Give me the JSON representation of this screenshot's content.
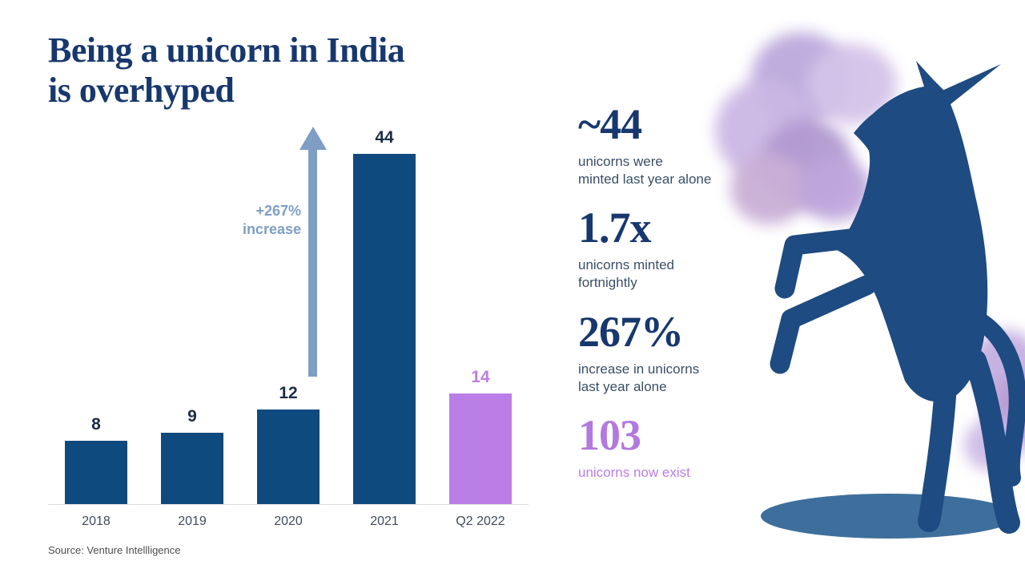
{
  "title": {
    "line1": "Being a unicorn in India",
    "line2": "is overhyped"
  },
  "chart_data": {
    "type": "bar",
    "title": "Being a unicorn in India is overhyped",
    "categories": [
      "2018",
      "2019",
      "2020",
      "2021",
      "Q2 2022"
    ],
    "values": [
      8,
      9,
      12,
      44,
      14
    ],
    "highlight_index": 4,
    "bar_color": "#0F4A7E",
    "highlight_color": "#BB7EE6",
    "annotation_line1": "+267%",
    "annotation_line2": "increase",
    "xlabel": "",
    "ylabel": "",
    "ylim": [
      0,
      46
    ],
    "grid": false,
    "legend": "none"
  },
  "stats": [
    {
      "value": "~44",
      "desc": "unicorns were\nminted last year alone"
    },
    {
      "value": "1.7x",
      "desc": "unicorns minted\nfortnightly"
    },
    {
      "value": "267%",
      "desc": "increase in unicorns\nlast year alone"
    },
    {
      "value": "103",
      "desc": "unicorns now exist"
    }
  ],
  "source": "Source: Venture Intellligence",
  "colors": {
    "navy": "#17386E",
    "bar": "#0F4A7E",
    "purple": "#BB7EE6",
    "purpledeep": "#B279DF",
    "arrow": "#7E9EC4",
    "muted": "#3A4E66",
    "tick": "#414B59",
    "valuelabel": "#1C2C45",
    "sourcetext": "#4E4E4E",
    "baseline": "#DDDDDD",
    "unicorn": "#1E4B81",
    "shadow": "#3E6F9C"
  },
  "art": {
    "cloud_colors": [
      "#BCA9DC",
      "#CBB7E4",
      "#B29AD0",
      "#D4C3E9",
      "#C9AFD6",
      "#BFA6DC",
      "#C4AEE0",
      "#B79BD3",
      "#CDBBE6"
    ]
  }
}
